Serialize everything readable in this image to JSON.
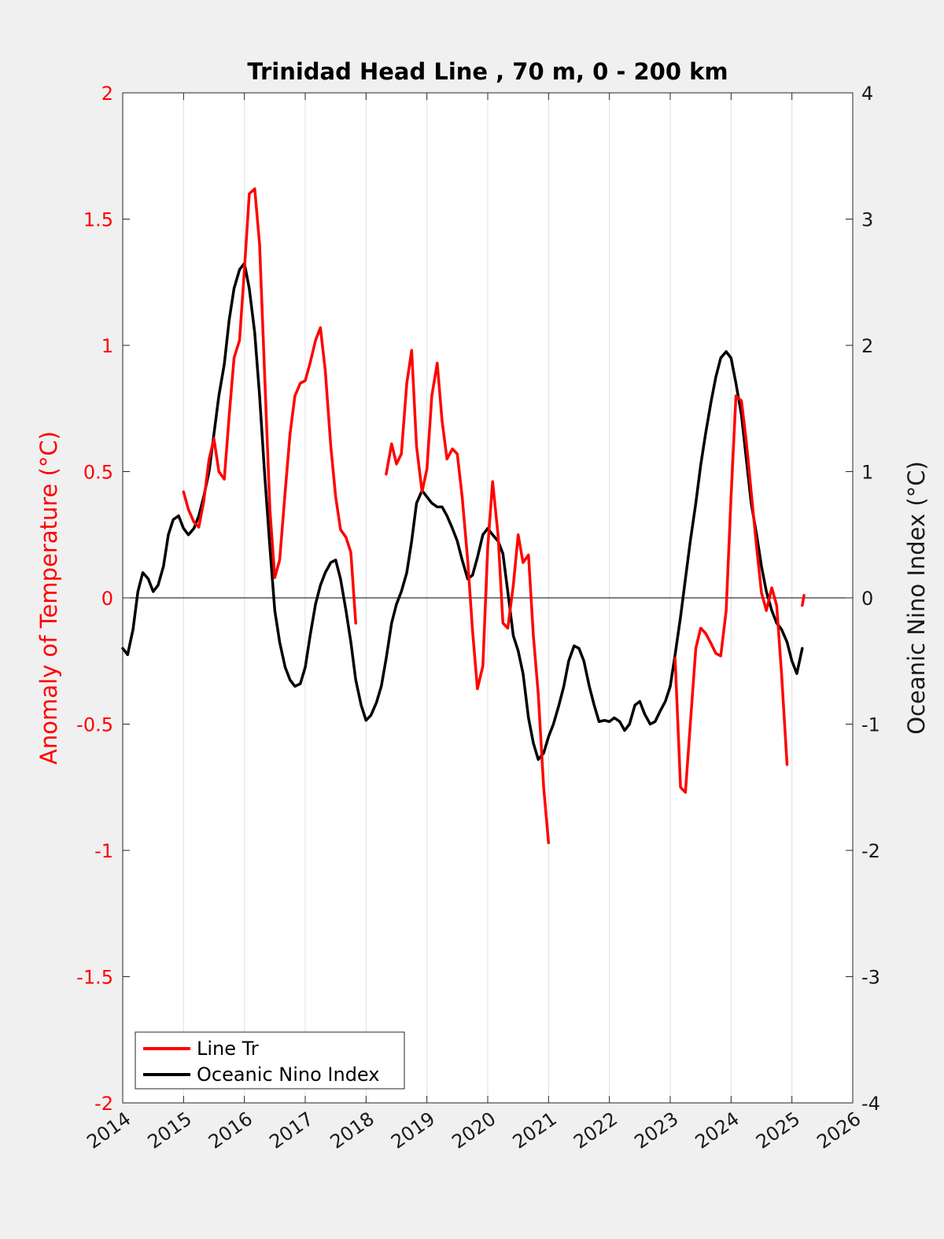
{
  "chart_data": {
    "type": "line",
    "title": "Trinidad Head Line , 70 m, 0 - 200 km",
    "ylabel_left": "Anomaly of Temperature (°C)",
    "ylabel_right": "Oceanic Nino Index (°C)",
    "xlim": [
      2014,
      2026
    ],
    "ylim_left": [
      -2,
      2
    ],
    "ylim_right": [
      -4,
      4
    ],
    "x_ticks": [
      "2014",
      "2015",
      "2016",
      "2017",
      "2018",
      "2019",
      "2020",
      "2021",
      "2022",
      "2023",
      "2024",
      "2025",
      "2026"
    ],
    "y_ticks_left": [
      "2",
      "1.5",
      "1",
      "0.5",
      "0",
      "-0.5",
      "-1",
      "-1.5",
      "-2"
    ],
    "y_ticks_right": [
      "4",
      "3",
      "2",
      "1",
      "0",
      "-1",
      "-2",
      "-3",
      "-4"
    ],
    "vertical_grid": true,
    "zero_line": true,
    "legend_position": "bottom-left",
    "colors": {
      "line_tr": "#ff0000",
      "oni": "#000000",
      "grid": "#e0e0e0"
    },
    "series": [
      {
        "name": "Line Tr",
        "axis": "left",
        "color": "#ff0000",
        "segments": [
          [
            [
              2015.0,
              0.42
            ],
            [
              2015.08,
              0.35
            ],
            [
              2015.17,
              0.3
            ],
            [
              2015.25,
              0.28
            ],
            [
              2015.33,
              0.38
            ],
            [
              2015.42,
              0.55
            ],
            [
              2015.5,
              0.63
            ],
            [
              2015.58,
              0.5
            ],
            [
              2015.67,
              0.47
            ],
            [
              2015.75,
              0.72
            ],
            [
              2015.83,
              0.95
            ],
            [
              2015.92,
              1.02
            ],
            [
              2016.0,
              1.3
            ],
            [
              2016.08,
              1.6
            ],
            [
              2016.17,
              1.62
            ],
            [
              2016.25,
              1.4
            ],
            [
              2016.33,
              0.9
            ],
            [
              2016.42,
              0.35
            ],
            [
              2016.5,
              0.08
            ],
            [
              2016.58,
              0.15
            ],
            [
              2016.67,
              0.42
            ],
            [
              2016.75,
              0.65
            ],
            [
              2016.83,
              0.8
            ],
            [
              2016.92,
              0.85
            ],
            [
              2017.0,
              0.86
            ],
            [
              2017.08,
              0.93
            ],
            [
              2017.17,
              1.02
            ],
            [
              2017.25,
              1.07
            ],
            [
              2017.33,
              0.9
            ],
            [
              2017.42,
              0.6
            ],
            [
              2017.5,
              0.4
            ],
            [
              2017.58,
              0.27
            ],
            [
              2017.67,
              0.24
            ],
            [
              2017.75,
              0.18
            ],
            [
              2017.83,
              -0.1
            ]
          ],
          [
            [
              2018.33,
              0.49
            ],
            [
              2018.42,
              0.61
            ],
            [
              2018.5,
              0.53
            ],
            [
              2018.58,
              0.57
            ],
            [
              2018.67,
              0.85
            ],
            [
              2018.75,
              0.98
            ],
            [
              2018.83,
              0.6
            ],
            [
              2018.92,
              0.42
            ],
            [
              2019.0,
              0.51
            ],
            [
              2019.08,
              0.8
            ],
            [
              2019.17,
              0.93
            ],
            [
              2019.25,
              0.7
            ],
            [
              2019.33,
              0.55
            ],
            [
              2019.42,
              0.59
            ],
            [
              2019.5,
              0.57
            ],
            [
              2019.58,
              0.4
            ],
            [
              2019.67,
              0.15
            ],
            [
              2019.75,
              -0.13
            ],
            [
              2019.83,
              -0.36
            ],
            [
              2019.92,
              -0.27
            ],
            [
              2020.0,
              0.2
            ],
            [
              2020.08,
              0.46
            ],
            [
              2020.17,
              0.25
            ],
            [
              2020.25,
              -0.1
            ],
            [
              2020.33,
              -0.12
            ],
            [
              2020.42,
              0.05
            ],
            [
              2020.5,
              0.25
            ],
            [
              2020.58,
              0.14
            ],
            [
              2020.67,
              0.17
            ],
            [
              2020.75,
              -0.15
            ],
            [
              2020.83,
              -0.38
            ],
            [
              2020.92,
              -0.75
            ],
            [
              2021.0,
              -0.97
            ]
          ],
          [
            [
              2023.08,
              -0.24
            ],
            [
              2023.17,
              -0.75
            ],
            [
              2023.25,
              -0.77
            ],
            [
              2023.33,
              -0.5
            ],
            [
              2023.42,
              -0.2
            ],
            [
              2023.5,
              -0.12
            ],
            [
              2023.58,
              -0.14
            ],
            [
              2023.67,
              -0.18
            ],
            [
              2023.75,
              -0.22
            ],
            [
              2023.83,
              -0.23
            ],
            [
              2023.92,
              -0.05
            ],
            [
              2024.0,
              0.4
            ],
            [
              2024.08,
              0.8
            ],
            [
              2024.17,
              0.78
            ],
            [
              2024.25,
              0.62
            ],
            [
              2024.33,
              0.42
            ],
            [
              2024.42,
              0.2
            ],
            [
              2024.5,
              0.02
            ],
            [
              2024.58,
              -0.05
            ],
            [
              2024.67,
              0.04
            ],
            [
              2024.75,
              -0.03
            ],
            [
              2024.83,
              -0.3
            ],
            [
              2024.92,
              -0.66
            ]
          ],
          [
            [
              2025.17,
              -0.03
            ],
            [
              2025.2,
              0.01
            ]
          ]
        ]
      },
      {
        "name": "Oceanic Nino Index",
        "axis": "right",
        "color": "#000000",
        "segments": [
          [
            [
              2014.0,
              -0.4
            ],
            [
              2014.08,
              -0.45
            ],
            [
              2014.17,
              -0.25
            ],
            [
              2014.25,
              0.05
            ],
            [
              2014.33,
              0.2
            ],
            [
              2014.42,
              0.15
            ],
            [
              2014.5,
              0.05
            ],
            [
              2014.58,
              0.1
            ],
            [
              2014.67,
              0.25
            ],
            [
              2014.75,
              0.5
            ],
            [
              2014.83,
              0.62
            ],
            [
              2014.92,
              0.65
            ],
            [
              2015.0,
              0.55
            ],
            [
              2015.08,
              0.5
            ],
            [
              2015.17,
              0.55
            ],
            [
              2015.25,
              0.65
            ],
            [
              2015.33,
              0.8
            ],
            [
              2015.42,
              1.0
            ],
            [
              2015.5,
              1.3
            ],
            [
              2015.58,
              1.6
            ],
            [
              2015.67,
              1.85
            ],
            [
              2015.75,
              2.2
            ],
            [
              2015.83,
              2.45
            ],
            [
              2015.92,
              2.6
            ],
            [
              2016.0,
              2.65
            ],
            [
              2016.08,
              2.45
            ],
            [
              2016.17,
              2.1
            ],
            [
              2016.25,
              1.6
            ],
            [
              2016.33,
              1.0
            ],
            [
              2016.42,
              0.4
            ],
            [
              2016.5,
              -0.1
            ],
            [
              2016.58,
              -0.35
            ],
            [
              2016.67,
              -0.55
            ],
            [
              2016.75,
              -0.65
            ],
            [
              2016.83,
              -0.7
            ],
            [
              2016.92,
              -0.68
            ],
            [
              2017.0,
              -0.55
            ],
            [
              2017.08,
              -0.3
            ],
            [
              2017.17,
              -0.05
            ],
            [
              2017.25,
              0.1
            ],
            [
              2017.33,
              0.2
            ],
            [
              2017.42,
              0.28
            ],
            [
              2017.5,
              0.3
            ],
            [
              2017.58,
              0.15
            ],
            [
              2017.67,
              -0.1
            ],
            [
              2017.75,
              -0.35
            ],
            [
              2017.83,
              -0.65
            ],
            [
              2017.92,
              -0.85
            ],
            [
              2018.0,
              -0.97
            ],
            [
              2018.08,
              -0.93
            ],
            [
              2018.17,
              -0.83
            ],
            [
              2018.25,
              -0.7
            ],
            [
              2018.33,
              -0.48
            ],
            [
              2018.42,
              -0.2
            ],
            [
              2018.5,
              -0.05
            ],
            [
              2018.58,
              0.05
            ],
            [
              2018.67,
              0.2
            ],
            [
              2018.75,
              0.45
            ],
            [
              2018.83,
              0.75
            ],
            [
              2018.92,
              0.85
            ],
            [
              2019.0,
              0.8
            ],
            [
              2019.08,
              0.75
            ],
            [
              2019.17,
              0.72
            ],
            [
              2019.25,
              0.72
            ],
            [
              2019.33,
              0.65
            ],
            [
              2019.42,
              0.55
            ],
            [
              2019.5,
              0.45
            ],
            [
              2019.58,
              0.3
            ],
            [
              2019.67,
              0.15
            ],
            [
              2019.75,
              0.18
            ],
            [
              2019.83,
              0.32
            ],
            [
              2019.92,
              0.5
            ],
            [
              2020.0,
              0.55
            ],
            [
              2020.08,
              0.5
            ],
            [
              2020.17,
              0.45
            ],
            [
              2020.25,
              0.35
            ],
            [
              2020.33,
              0.05
            ],
            [
              2020.42,
              -0.3
            ],
            [
              2020.5,
              -0.42
            ],
            [
              2020.58,
              -0.6
            ],
            [
              2020.67,
              -0.95
            ],
            [
              2020.75,
              -1.15
            ],
            [
              2020.83,
              -1.28
            ],
            [
              2020.92,
              -1.23
            ],
            [
              2021.0,
              -1.1
            ],
            [
              2021.08,
              -1.0
            ],
            [
              2021.17,
              -0.85
            ],
            [
              2021.25,
              -0.7
            ],
            [
              2021.33,
              -0.5
            ],
            [
              2021.42,
              -0.38
            ],
            [
              2021.5,
              -0.4
            ],
            [
              2021.58,
              -0.5
            ],
            [
              2021.67,
              -0.7
            ],
            [
              2021.75,
              -0.85
            ],
            [
              2021.83,
              -0.98
            ],
            [
              2021.92,
              -0.97
            ],
            [
              2022.0,
              -0.98
            ],
            [
              2022.08,
              -0.95
            ],
            [
              2022.17,
              -0.98
            ],
            [
              2022.25,
              -1.05
            ],
            [
              2022.33,
              -1.0
            ],
            [
              2022.42,
              -0.85
            ],
            [
              2022.5,
              -0.82
            ],
            [
              2022.58,
              -0.92
            ],
            [
              2022.67,
              -1.0
            ],
            [
              2022.75,
              -0.98
            ],
            [
              2022.83,
              -0.9
            ],
            [
              2022.92,
              -0.82
            ],
            [
              2023.0,
              -0.7
            ],
            [
              2023.08,
              -0.45
            ],
            [
              2023.17,
              -0.15
            ],
            [
              2023.25,
              0.15
            ],
            [
              2023.33,
              0.45
            ],
            [
              2023.42,
              0.75
            ],
            [
              2023.5,
              1.05
            ],
            [
              2023.58,
              1.3
            ],
            [
              2023.67,
              1.55
            ],
            [
              2023.75,
              1.75
            ],
            [
              2023.83,
              1.9
            ],
            [
              2023.92,
              1.95
            ],
            [
              2024.0,
              1.9
            ],
            [
              2024.08,
              1.7
            ],
            [
              2024.17,
              1.45
            ],
            [
              2024.25,
              1.1
            ],
            [
              2024.33,
              0.75
            ],
            [
              2024.42,
              0.5
            ],
            [
              2024.5,
              0.25
            ],
            [
              2024.58,
              0.05
            ],
            [
              2024.67,
              -0.1
            ],
            [
              2024.75,
              -0.2
            ],
            [
              2024.83,
              -0.25
            ],
            [
              2024.92,
              -0.35
            ],
            [
              2025.0,
              -0.5
            ],
            [
              2025.08,
              -0.6
            ],
            [
              2025.17,
              -0.4
            ]
          ]
        ]
      }
    ]
  }
}
